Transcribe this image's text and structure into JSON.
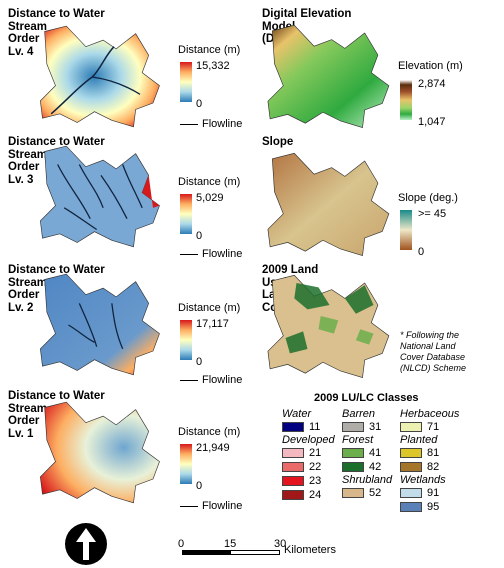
{
  "panels": {
    "dist4": {
      "title": "Distance to Water\nStream\nOrder\nLv. 4",
      "legend_title": "Distance (m)",
      "max": "15,332",
      "min": "0",
      "flowline": "Flowline"
    },
    "dist3": {
      "title": "Distance to Water\nStream\nOrder\nLv. 3",
      "legend_title": "Distance (m)",
      "max": "5,029",
      "min": "0",
      "flowline": "Flowline"
    },
    "dist2": {
      "title": "Distance to Water\nStream\nOrder\nLv. 2",
      "legend_title": "Distance (m)",
      "max": "17,117",
      "min": "0",
      "flowline": "Flowline"
    },
    "dist1": {
      "title": "Distance to Water\nStream\nOrder\nLv. 1",
      "legend_title": "Distance (m)",
      "max": "21,949",
      "min": "0",
      "flowline": "Flowline"
    },
    "dem": {
      "title": "Digital Elevation\nModel\n(DEM)",
      "legend_title": "Elevation (m)",
      "max": "2,874",
      "min": "1,047"
    },
    "slope": {
      "title": "Slope",
      "legend_title": "Slope (deg.)",
      "max": ">= 45",
      "min": "0"
    },
    "landuse": {
      "title": "2009 Land\nUse/\nLand\nCover"
    }
  },
  "nlcd_note": "* Following the\nNational Land\nCover Database\n(NLCD) Scheme",
  "lulc": {
    "heading": "2009 LU/LC Classes",
    "water": {
      "label": "Water",
      "items": [
        {
          "code": "11",
          "color": "#000080"
        }
      ]
    },
    "developed": {
      "label": "Developed",
      "items": [
        {
          "code": "21",
          "color": "#f4b8c0"
        },
        {
          "code": "22",
          "color": "#ea6a6a"
        },
        {
          "code": "23",
          "color": "#e3141e"
        },
        {
          "code": "24",
          "color": "#a01818"
        }
      ]
    },
    "barren": {
      "label": "Barren",
      "items": [
        {
          "code": "31",
          "color": "#b0aca8"
        }
      ]
    },
    "forest": {
      "label": "Forest",
      "items": [
        {
          "code": "41",
          "color": "#6cae4c"
        },
        {
          "code": "42",
          "color": "#1c6e2c"
        }
      ]
    },
    "shrubland": {
      "label": "Shrubland",
      "items": [
        {
          "code": "52",
          "color": "#d8b88a"
        }
      ]
    },
    "herbaceous": {
      "label": "Herbaceous",
      "items": [
        {
          "code": "71",
          "color": "#ecf0b0"
        }
      ]
    },
    "planted": {
      "label": "Planted",
      "items": [
        {
          "code": "81",
          "color": "#dcc62a"
        },
        {
          "code": "82",
          "color": "#a5752c"
        }
      ]
    },
    "wetlands": {
      "label": "Wetlands",
      "items": [
        {
          "code": "91",
          "color": "#c2dcea"
        },
        {
          "code": "95",
          "color": "#5a80b8"
        }
      ]
    }
  },
  "scalebar": {
    "ticks": [
      "0",
      "15",
      "30"
    ],
    "unit": "Kilometers"
  }
}
